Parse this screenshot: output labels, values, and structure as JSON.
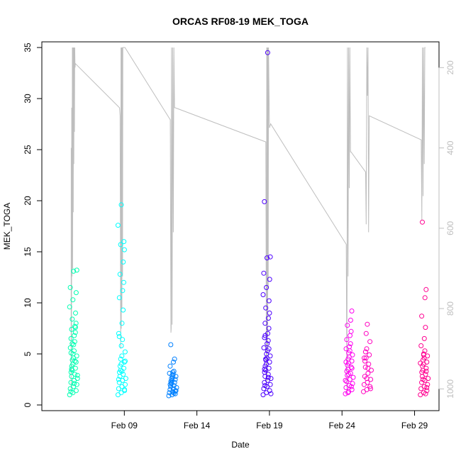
{
  "chart_data": {
    "type": "scatter",
    "title": "ORCAS RF08-19 MEK_TOGA",
    "xlabel": "Date",
    "ylabel": "MEK_TOGA",
    "xlim": [
      "2016-02-04",
      "2016-03-01"
    ],
    "ylim": [
      0,
      35
    ],
    "x_ticks": [
      {
        "date": "2016-02-09",
        "label": "Feb 09"
      },
      {
        "date": "2016-02-14",
        "label": "Feb 14"
      },
      {
        "date": "2016-02-19",
        "label": "Feb 19"
      },
      {
        "date": "2016-02-24",
        "label": "Feb 24"
      },
      {
        "date": "2016-02-29",
        "label": "Feb 29"
      }
    ],
    "y_ticks": [
      0,
      5,
      10,
      15,
      20,
      25,
      30,
      35
    ],
    "right_axis": {
      "ticks": [
        200,
        400,
        600,
        800,
        1000
      ],
      "ylim": [
        1040,
        150
      ],
      "color": "#bebebe"
    },
    "grid": false,
    "flights": [
      {
        "center": "2016-02-05 12:00",
        "color": "#00ffb2",
        "mek": [
          1.0,
          1.2,
          1.4,
          1.6,
          1.8,
          2.0,
          2.2,
          2.4,
          2.6,
          2.8,
          3.0,
          3.2,
          3.4,
          3.6,
          3.8,
          4.0,
          4.2,
          4.4,
          4.6,
          4.8,
          5.0,
          5.3,
          5.6,
          5.9,
          6.2,
          6.5,
          6.8,
          7.1,
          7.4,
          7.7,
          8.0,
          8.4,
          9.0,
          9.6,
          10.3,
          11.0,
          11.5,
          13.1,
          13.2,
          1.3,
          2.1,
          2.9,
          3.5,
          4.3,
          5.1,
          6.0,
          7.6
        ],
        "alt": [
          [
            "2016-02-05 08:00",
            1000
          ],
          [
            "2016-02-05 08:10",
            400
          ],
          [
            "2016-02-05 08:25",
            880
          ],
          [
            "2016-02-05 08:40",
            860
          ],
          [
            "2016-02-05 09:00",
            300
          ],
          [
            "2016-02-05 09:30",
            720
          ],
          [
            "2016-02-05 10:00",
            150
          ],
          [
            "2016-02-05 10:30",
            700
          ],
          [
            "2016-02-05 11:00",
            150
          ],
          [
            "2016-02-05 11:30",
            560
          ],
          [
            "2016-02-05 12:00",
            150
          ],
          [
            "2016-02-05 12:30",
            440
          ],
          [
            "2016-02-05 13:00",
            150
          ],
          [
            "2016-02-05 13:30",
            360
          ],
          [
            "2016-02-05 14:00",
            150
          ],
          [
            "2016-02-05 14:30",
            200
          ],
          [
            "2016-02-05 15:00",
            190
          ]
        ]
      },
      {
        "center": "2016-02-08 20:00",
        "color": "#00ffff",
        "mek": [
          1.0,
          1.2,
          1.4,
          1.6,
          1.8,
          2.0,
          2.2,
          2.4,
          2.6,
          2.8,
          3.0,
          3.2,
          3.4,
          3.6,
          3.8,
          4.0,
          4.2,
          4.5,
          4.8,
          5.2,
          5.8,
          6.4,
          7.0,
          8.0,
          9.3,
          10.5,
          11.2,
          12.0,
          12.8,
          14.0,
          15.2,
          15.7,
          16.0,
          17.6,
          19.6,
          1.5,
          2.5,
          3.3,
          4.3,
          6.7
        ],
        "alt": [
          [
            "2016-02-08 16:00",
            300
          ],
          [
            "2016-02-08 17:00",
            320
          ],
          [
            "2016-02-08 18:00",
            900
          ],
          [
            "2016-02-08 18:30",
            150
          ],
          [
            "2016-02-08 19:00",
            850
          ],
          [
            "2016-02-08 19:30",
            150
          ],
          [
            "2016-02-08 20:00",
            800
          ],
          [
            "2016-02-08 20:30",
            150
          ],
          [
            "2016-02-08 21:00",
            720
          ],
          [
            "2016-02-08 21:30",
            150
          ],
          [
            "2016-02-08 22:00",
            150
          ],
          [
            "2016-02-09 01:00",
            150
          ]
        ]
      },
      {
        "center": "2016-02-12 08:00",
        "color": "#0080ff",
        "mek": [
          0.9,
          1.0,
          1.1,
          1.2,
          1.3,
          1.4,
          1.5,
          1.6,
          1.7,
          1.8,
          1.9,
          2.0,
          2.1,
          2.2,
          2.3,
          2.4,
          2.5,
          2.6,
          2.7,
          2.8,
          2.9,
          3.0,
          3.1,
          3.2,
          3.3,
          3.8,
          4.2,
          4.5,
          5.9,
          1.15,
          1.35,
          2.15
        ],
        "alt": [
          [
            "2016-02-09 01:00",
            150
          ],
          [
            "2016-02-12 04:00",
            330
          ],
          [
            "2016-02-12 05:00",
            860
          ],
          [
            "2016-02-12 05:30",
            850
          ],
          [
            "2016-02-12 06:00",
            150
          ],
          [
            "2016-02-12 07:00",
            840
          ],
          [
            "2016-02-12 08:00",
            150
          ],
          [
            "2016-02-12 09:00",
            610
          ],
          [
            "2016-02-12 10:00",
            150
          ],
          [
            "2016-02-12 11:00",
            300
          ],
          [
            "2016-02-12 12:00",
            300
          ]
        ]
      },
      {
        "center": "2016-02-18 20:00",
        "color": "#4d00ff",
        "mek": [
          1.0,
          1.2,
          1.4,
          1.6,
          1.8,
          2.0,
          2.2,
          2.4,
          2.6,
          2.8,
          3.0,
          3.2,
          3.4,
          3.6,
          3.8,
          4.0,
          4.2,
          4.4,
          4.6,
          4.8,
          5.0,
          5.3,
          5.6,
          6.0,
          6.3,
          6.6,
          7.0,
          7.5,
          8.0,
          8.5,
          9.0,
          9.5,
          10.2,
          10.8,
          11.5,
          12.3,
          12.9,
          14.4,
          14.5,
          19.9,
          34.5,
          1.1,
          1.9,
          2.7,
          3.5,
          4.5,
          5.5,
          6.8
        ],
        "alt": [
          [
            "2016-02-12 12:00",
            300
          ],
          [
            "2016-02-18 18:00",
            385
          ],
          [
            "2016-02-18 19:00",
            1000
          ],
          [
            "2016-02-18 19:30",
            150
          ],
          [
            "2016-02-18 20:00",
            980
          ],
          [
            "2016-02-18 20:30",
            150
          ],
          [
            "2016-02-18 21:00",
            900
          ],
          [
            "2016-02-18 21:30",
            150
          ],
          [
            "2016-02-18 22:00",
            750
          ],
          [
            "2016-02-18 22:30",
            150
          ],
          [
            "2016-02-19 00:00",
            350
          ],
          [
            "2016-02-19 02:00",
            340
          ]
        ]
      },
      {
        "center": "2016-02-24 12:00",
        "color": "#ff00f0",
        "mek": [
          1.1,
          1.3,
          1.5,
          1.7,
          1.9,
          2.1,
          2.3,
          2.5,
          2.7,
          2.9,
          3.1,
          3.3,
          3.5,
          3.7,
          3.9,
          4.1,
          4.3,
          4.5,
          4.7,
          4.9,
          5.1,
          5.3,
          5.5,
          5.7,
          6.0,
          6.4,
          6.8,
          7.2,
          7.8,
          8.3,
          9.2,
          1.2,
          1.8,
          2.4,
          3.0,
          3.6,
          4.2
        ],
        "alt": [
          [
            "2016-02-19 02:00",
            340
          ],
          [
            "2016-02-24 07:00",
            640
          ],
          [
            "2016-02-24 08:00",
            1010
          ],
          [
            "2016-02-24 09:00",
            150
          ],
          [
            "2016-02-24 10:00",
            720
          ],
          [
            "2016-02-24 11:00",
            150
          ],
          [
            "2016-02-24 12:00",
            500
          ],
          [
            "2016-02-24 13:00",
            150
          ],
          [
            "2016-02-24 14:00",
            410
          ],
          [
            "2016-02-24 15:00",
            410
          ]
        ]
      },
      {
        "center": "2016-02-25 18:00",
        "color": "#ff00c0",
        "mek": [
          1.3,
          1.5,
          1.8,
          2.0,
          2.2,
          2.5,
          2.8,
          3.1,
          3.4,
          3.7,
          4.0,
          4.3,
          4.6,
          4.9,
          5.2,
          5.5,
          6.2,
          7.0,
          7.9,
          1.6,
          2.6,
          3.6,
          4.6
        ],
        "alt": [
          [
            "2016-02-24 15:00",
            410
          ],
          [
            "2016-02-25 15:00",
            460
          ],
          [
            "2016-02-25 16:00",
            590
          ],
          [
            "2016-02-25 17:00",
            150
          ],
          [
            "2016-02-25 18:00",
            270
          ],
          [
            "2016-02-25 19:00",
            150
          ],
          [
            "2016-02-25 20:00",
            610
          ],
          [
            "2016-02-25 21:00",
            320
          ]
        ]
      },
      {
        "center": "2016-02-29 16:00",
        "color": "#ff0090",
        "mek": [
          1.0,
          1.2,
          1.4,
          1.6,
          1.8,
          2.0,
          2.2,
          2.4,
          2.6,
          2.8,
          3.0,
          3.2,
          3.4,
          3.6,
          3.8,
          4.0,
          4.2,
          4.4,
          4.6,
          4.8,
          5.0,
          5.3,
          5.8,
          6.5,
          7.6,
          8.7,
          10.5,
          11.3,
          17.9,
          1.1,
          1.7,
          2.5,
          3.3,
          4.1,
          4.9
        ],
        "alt": [
          [
            "2016-02-25 21:00",
            320
          ],
          [
            "2016-02-29 11:00",
            380
          ],
          [
            "2016-02-29 12:00",
            580
          ],
          [
            "2016-02-29 13:00",
            150
          ],
          [
            "2016-02-29 14:00",
            520
          ],
          [
            "2016-02-29 15:00",
            150
          ],
          [
            "2016-02-29 16:00",
            440
          ],
          [
            "2016-02-29 17:00",
            150
          ],
          [
            "2016-02-29 18:00",
            150
          ]
        ]
      }
    ]
  }
}
